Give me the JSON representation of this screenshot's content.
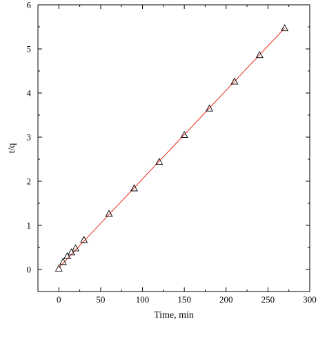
{
  "chart_data": {
    "type": "scatter",
    "title": "",
    "xlabel": "Time, min",
    "ylabel": "t/q",
    "xlim": [
      -25,
      300
    ],
    "ylim": [
      -0.5,
      6
    ],
    "xticks": [
      0,
      50,
      100,
      150,
      200,
      250,
      300
    ],
    "yticks": [
      0,
      1,
      2,
      3,
      4,
      5,
      6
    ],
    "grid": false,
    "legend": "none",
    "series": [
      {
        "marker": "open-triangle",
        "color": "#000000",
        "points": [
          {
            "x": 0,
            "y": 0.02
          },
          {
            "x": 5,
            "y": 0.17
          },
          {
            "x": 10,
            "y": 0.3
          },
          {
            "x": 15,
            "y": 0.39
          },
          {
            "x": 20,
            "y": 0.48
          },
          {
            "x": 30,
            "y": 0.67
          },
          {
            "x": 60,
            "y": 1.26
          },
          {
            "x": 90,
            "y": 1.84
          },
          {
            "x": 120,
            "y": 2.44
          },
          {
            "x": 150,
            "y": 3.05
          },
          {
            "x": 180,
            "y": 3.65
          },
          {
            "x": 210,
            "y": 4.26
          },
          {
            "x": 240,
            "y": 4.86
          },
          {
            "x": 270,
            "y": 5.47
          }
        ]
      },
      {
        "type": "line",
        "color": "#e8261c",
        "points": [
          {
            "x": 0,
            "y": 0.04
          },
          {
            "x": 270,
            "y": 5.47
          }
        ]
      }
    ]
  }
}
